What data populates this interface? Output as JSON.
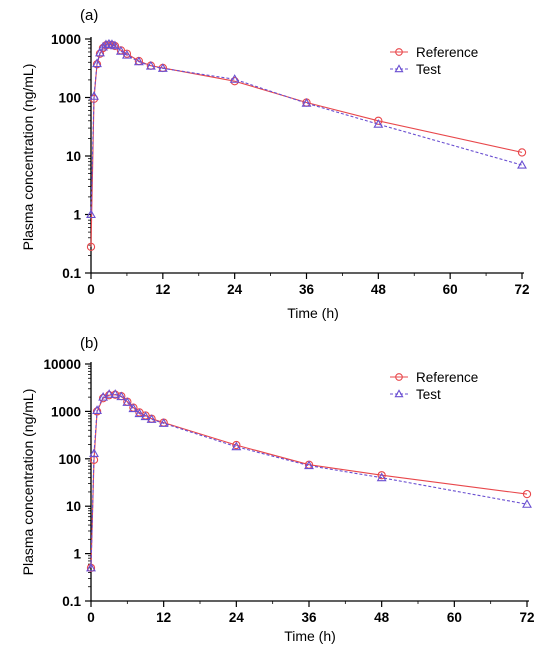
{
  "chart_data": [
    {
      "type": "line",
      "panel_label": "(a)",
      "xlabel": "Time (h)",
      "ylabel": "Plasma concentration (ng/mL)",
      "yscale": "log",
      "xlim": [
        0,
        72
      ],
      "ylim": [
        0.1,
        1000
      ],
      "x_ticks": [
        0,
        12,
        24,
        36,
        48,
        60,
        72
      ],
      "y_ticks": [
        0.1,
        1,
        10,
        100,
        1000
      ],
      "y_tick_labels": [
        "0.1",
        "1",
        "10",
        "100",
        "1000"
      ],
      "legend": {
        "position": "top-right",
        "entries": [
          "Reference",
          "Test"
        ]
      },
      "series": [
        {
          "name": "Reference",
          "color": "#e8474b",
          "marker": "circle",
          "x": [
            0,
            0.5,
            1,
            1.5,
            2,
            2.5,
            3,
            3.5,
            4,
            5,
            6,
            8,
            10,
            12,
            24,
            36,
            48,
            72
          ],
          "y": [
            0.28,
            95,
            370,
            560,
            700,
            780,
            800,
            790,
            760,
            640,
            560,
            420,
            350,
            320,
            190,
            82,
            40,
            11.5
          ]
        },
        {
          "name": "Test",
          "color": "#6a4fd1",
          "marker": "triangle",
          "x": [
            0,
            0.5,
            1,
            1.5,
            2,
            2.5,
            3,
            3.5,
            4,
            5,
            6,
            8,
            10,
            12,
            24,
            36,
            48,
            72
          ],
          "y": [
            1,
            105,
            380,
            580,
            730,
            800,
            820,
            810,
            770,
            620,
            530,
            410,
            345,
            315,
            205,
            80,
            35,
            7
          ]
        }
      ]
    },
    {
      "type": "line",
      "panel_label": "(b)",
      "xlabel": "Time (h)",
      "ylabel": "Plasma concentration (ng/mL)",
      "yscale": "log",
      "xlim": [
        0,
        72
      ],
      "ylim": [
        0.1,
        10000
      ],
      "x_ticks": [
        0,
        12,
        24,
        36,
        48,
        60,
        72
      ],
      "y_ticks": [
        0.1,
        1,
        10,
        100,
        1000,
        10000
      ],
      "y_tick_labels": [
        "0.1",
        "1",
        "10",
        "100",
        "1000",
        "10000"
      ],
      "legend": {
        "position": "top-right",
        "entries": [
          "Reference",
          "Test"
        ]
      },
      "series": [
        {
          "name": "Reference",
          "color": "#e8474b",
          "marker": "circle",
          "x": [
            0,
            0.5,
            1,
            2,
            3,
            4,
            5,
            6,
            7,
            8,
            9,
            10,
            12,
            24,
            36,
            48,
            72
          ],
          "y": [
            0.5,
            95,
            1000,
            1900,
            2200,
            2250,
            2100,
            1600,
            1200,
            950,
            820,
            700,
            580,
            195,
            75,
            45,
            18
          ]
        },
        {
          "name": "Test",
          "color": "#6a4fd1",
          "marker": "triangle",
          "x": [
            0,
            0.5,
            1,
            2,
            3,
            4,
            5,
            6,
            7,
            8,
            9,
            10,
            12,
            24,
            36,
            48,
            72
          ],
          "y": [
            0.5,
            130,
            1050,
            2000,
            2300,
            2300,
            2050,
            1550,
            1150,
            900,
            780,
            680,
            560,
            180,
            72,
            40,
            11
          ]
        }
      ]
    }
  ]
}
